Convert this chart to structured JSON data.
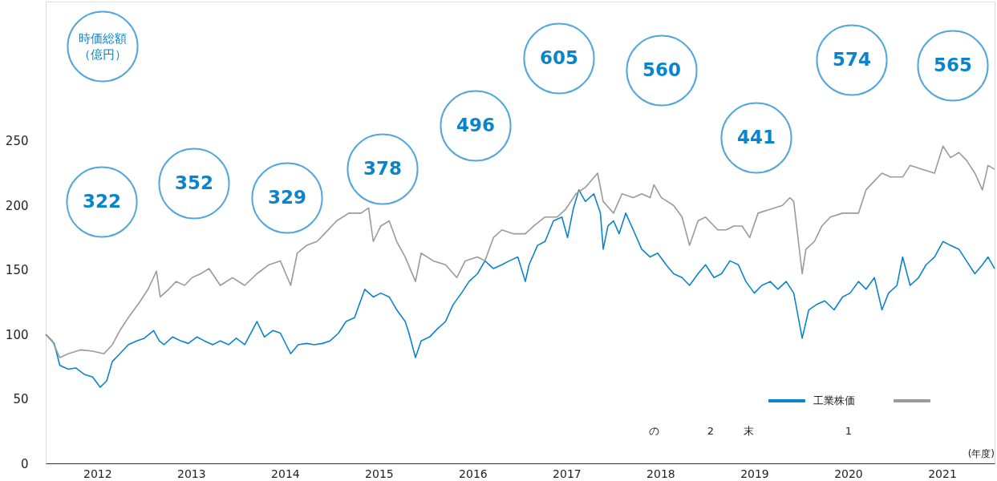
{
  "chart_data": {
    "type": "line",
    "xlabel": "(年度)",
    "xlim": [
      2011.95,
      2022.06
    ],
    "xticks": [
      {
        "value": 2012.5,
        "label": "2012"
      },
      {
        "value": 2013.5,
        "label": "2013"
      },
      {
        "value": 2014.5,
        "label": "2014"
      },
      {
        "value": 2015.5,
        "label": "2015"
      },
      {
        "value": 2016.5,
        "label": "2016"
      },
      {
        "value": 2017.5,
        "label": "2017"
      },
      {
        "value": 2018.5,
        "label": "2018"
      },
      {
        "value": 2019.5,
        "label": "2019"
      },
      {
        "value": 2020.5,
        "label": "2020"
      },
      {
        "value": 2021.5,
        "label": "2021"
      }
    ],
    "ylim": [
      0,
      358
    ],
    "yticks": [
      0,
      50,
      100,
      150,
      200,
      250
    ],
    "grid": false,
    "legend": "bottom right",
    "line_style": "solid",
    "series": [
      {
        "name": "工業株価",
        "color": "#0a84cc",
        "x": [
          2011.95,
          2012.04,
          2012.1,
          2012.19,
          2012.27,
          2012.36,
          2012.45,
          2012.53,
          2012.6,
          2012.66,
          2012.74,
          2012.83,
          2012.92,
          2013.0,
          2013.1,
          2013.16,
          2013.21,
          2013.3,
          2013.39,
          2013.47,
          2013.56,
          2013.64,
          2013.73,
          2013.81,
          2013.9,
          2013.98,
          2014.07,
          2014.15,
          2014.2,
          2014.28,
          2014.37,
          2014.45,
          2014.56,
          2014.64,
          2014.73,
          2014.81,
          2014.9,
          2014.98,
          2015.07,
          2015.15,
          2015.24,
          2015.35,
          2015.44,
          2015.52,
          2015.61,
          2015.69,
          2015.78,
          2015.82,
          2015.89,
          2015.95,
          2016.04,
          2016.12,
          2016.21,
          2016.29,
          2016.38,
          2016.46,
          2016.55,
          2016.63,
          2016.72,
          2016.81,
          2016.89,
          2016.98,
          2017.06,
          2017.1,
          2017.19,
          2017.27,
          2017.36,
          2017.45,
          2017.51,
          2017.57,
          2017.63,
          2017.7,
          2017.79,
          2017.86,
          2017.89,
          2017.94,
          2018.0,
          2018.06,
          2018.13,
          2018.21,
          2018.3,
          2018.39,
          2018.47,
          2018.56,
          2018.64,
          2018.73,
          2018.81,
          2018.9,
          2018.98,
          2019.07,
          2019.15,
          2019.24,
          2019.33,
          2019.41,
          2019.5,
          2019.58,
          2019.67,
          2019.75,
          2019.84,
          2019.92,
          2020.01,
          2020.08,
          2020.16,
          2020.25,
          2020.35,
          2020.44,
          2020.52,
          2020.61,
          2020.69,
          2020.78,
          2020.86,
          2020.93,
          2021.02,
          2021.08,
          2021.16,
          2021.25,
          2021.33,
          2021.42,
          2021.51,
          2021.59,
          2021.68,
          2021.76,
          2021.85,
          2021.93,
          2021.99,
          2022.06
        ],
        "values": [
          100,
          93,
          76,
          73,
          74,
          69,
          67,
          59,
          64,
          79,
          85,
          92,
          95,
          97,
          103,
          95,
          92,
          98,
          95,
          93,
          98,
          95,
          92,
          95,
          92,
          97,
          92,
          103,
          110,
          98,
          103,
          101,
          85,
          92,
          93,
          92,
          93,
          95,
          101,
          110,
          113,
          135,
          129,
          132,
          129,
          119,
          110,
          101,
          82,
          95,
          98,
          104,
          110,
          123,
          132,
          141,
          147,
          157,
          151,
          154,
          157,
          160,
          141,
          154,
          169,
          172,
          188,
          191,
          175,
          197,
          212,
          203,
          209,
          194,
          166,
          184,
          188,
          178,
          194,
          181,
          166,
          160,
          163,
          154,
          147,
          144,
          138,
          147,
          154,
          144,
          147,
          157,
          154,
          141,
          132,
          138,
          141,
          135,
          141,
          132,
          97,
          119,
          123,
          126,
          119,
          129,
          132,
          141,
          135,
          144,
          119,
          132,
          138,
          160,
          138,
          144,
          154,
          160,
          172,
          169,
          166,
          157,
          147,
          154,
          160,
          151
        ]
      },
      {
        "color": "#9a9a9a",
        "x": [
          2011.95,
          2012.02,
          2012.1,
          2012.19,
          2012.32,
          2012.45,
          2012.57,
          2012.66,
          2012.74,
          2012.83,
          2012.96,
          2013.04,
          2013.13,
          2013.17,
          2013.26,
          2013.34,
          2013.43,
          2013.51,
          2013.6,
          2013.69,
          2013.81,
          2013.94,
          2014.07,
          2014.2,
          2014.33,
          2014.45,
          2014.56,
          2014.63,
          2014.73,
          2014.84,
          2014.92,
          2015.05,
          2015.18,
          2015.31,
          2015.39,
          2015.44,
          2015.52,
          2015.61,
          2015.69,
          2015.78,
          2015.89,
          2015.95,
          2016.08,
          2016.21,
          2016.33,
          2016.42,
          2016.55,
          2016.63,
          2016.72,
          2016.81,
          2016.93,
          2017.06,
          2017.15,
          2017.27,
          2017.4,
          2017.49,
          2017.6,
          2017.7,
          2017.83,
          2017.89,
          2018.0,
          2018.09,
          2018.21,
          2018.3,
          2018.39,
          2018.43,
          2018.51,
          2018.64,
          2018.73,
          2018.81,
          2018.9,
          2018.98,
          2019.11,
          2019.2,
          2019.28,
          2019.37,
          2019.45,
          2019.54,
          2019.67,
          2019.8,
          2019.88,
          2019.92,
          2020.01,
          2020.05,
          2020.14,
          2020.22,
          2020.31,
          2020.44,
          2020.61,
          2020.69,
          2020.78,
          2020.86,
          2020.95,
          2021.08,
          2021.16,
          2021.29,
          2021.42,
          2021.51,
          2021.59,
          2021.68,
          2021.76,
          2021.85,
          2021.93,
          2021.99,
          2022.06
        ],
        "values": [
          100,
          95,
          82,
          85,
          88,
          87,
          85,
          92,
          103,
          113,
          126,
          135,
          149,
          129,
          135,
          141,
          138,
          144,
          147,
          151,
          138,
          144,
          138,
          147,
          154,
          157,
          138,
          163,
          169,
          172,
          178,
          188,
          194,
          194,
          198,
          172,
          184,
          188,
          172,
          160,
          141,
          163,
          157,
          154,
          144,
          157,
          160,
          157,
          175,
          181,
          178,
          178,
          184,
          191,
          191,
          197,
          209,
          214,
          225,
          203,
          194,
          209,
          206,
          209,
          206,
          216,
          206,
          200,
          191,
          169,
          188,
          191,
          181,
          181,
          184,
          184,
          175,
          194,
          197,
          200,
          206,
          203,
          147,
          166,
          172,
          184,
          191,
          194,
          194,
          212,
          219,
          225,
          222,
          222,
          231,
          228,
          225,
          246,
          237,
          241,
          235,
          225,
          212,
          231,
          228
        ]
      }
    ],
    "annotations": [
      "時価総額（億円）",
      "322",
      "352",
      "329",
      "378",
      "496",
      "605",
      "560",
      "441",
      "574",
      "565",
      "の",
      "2",
      "末",
      "1"
    ]
  }
}
